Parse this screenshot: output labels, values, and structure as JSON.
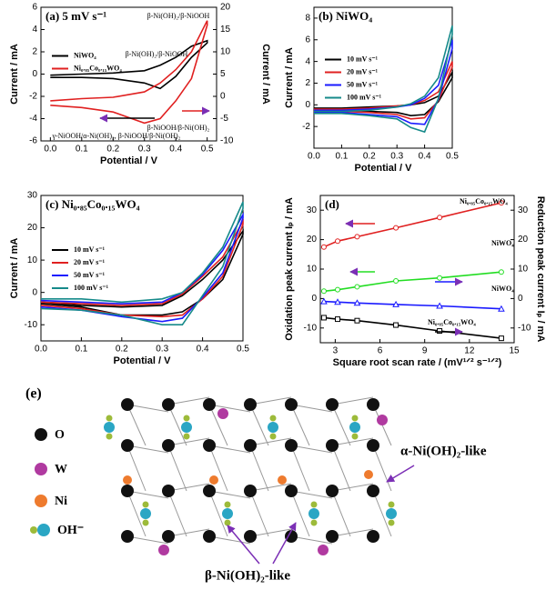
{
  "chart_data": [
    {
      "type": "line",
      "title": "(a) 5 mV s⁻¹",
      "xlabel": "Potential / V",
      "ylabel": "Current / mA",
      "y2label": "Current / mA",
      "xlim": [
        -0.03,
        0.53
      ],
      "xticks": [
        {
          "value": 0,
          "label": "0.0"
        },
        0.1,
        0.2,
        0.3,
        0.4,
        0.5
      ],
      "ylim": [
        -6,
        6
      ],
      "yticks": [
        -6,
        -4,
        -2,
        0,
        2,
        4,
        6
      ],
      "y2lim": [
        -10,
        20
      ],
      "y2ticks": [
        -10,
        -5,
        0,
        5,
        10,
        15,
        20
      ],
      "legend": "center left",
      "x": [
        0,
        0.1,
        0.2,
        0.3,
        0.35,
        0.4,
        0.45,
        0.5,
        0.5,
        0.45,
        0.4,
        0.35,
        0.3,
        0.2,
        0.1,
        0
      ],
      "series": [
        {
          "name": "NiWO₄",
          "color": "#000000",
          "values": [
            -0.1,
            0,
            0.1,
            0.3,
            0.8,
            1.5,
            2.5,
            3,
            2.8,
            1.5,
            -0.2,
            -1.3,
            -0.8,
            -0.4,
            -0.3,
            -0.3
          ]
        },
        {
          "name": "Ni₀.₈₅Co₀.₁₅WO₄",
          "color": "#e02020",
          "axis": "y2",
          "values": [
            -1,
            -0.5,
            -0.2,
            1,
            3,
            6,
            10,
            17,
            16,
            4,
            -1,
            -5,
            -6,
            -3.5,
            -2.5,
            -2
          ]
        }
      ],
      "annotations": [
        "β-Ni(OH)₂/β-NiOOH",
        "β-Ni(OH)₂/β-NiOOH",
        "β-NiOOH/β-Ni(OH)₂",
        "γ-NiOOH/α-Ni(OH)₂, β-NiOOH/β-Ni(OH)₂"
      ]
    },
    {
      "type": "line",
      "title": "(b) NiWO₄",
      "xlabel": "Potential / V",
      "ylabel": "Current / mA",
      "xlim": [
        0,
        0.5
      ],
      "xticks": [
        {
          "value": 0,
          "label": "0.0"
        },
        0.1,
        0.2,
        0.3,
        0.4,
        0.5
      ],
      "ylim": [
        -4,
        9
      ],
      "yticks": [
        -2,
        0,
        2,
        4,
        6,
        8
      ],
      "legend": "center left",
      "x": [
        0,
        0.1,
        0.2,
        0.3,
        0.35,
        0.4,
        0.45,
        0.5,
        0.5,
        0.45,
        0.4,
        0.35,
        0.3,
        0.2,
        0.1,
        0
      ],
      "series": [
        {
          "name": "10 mV s⁻¹",
          "color": "#000000",
          "values": [
            -0.3,
            -0.3,
            -0.2,
            -0.1,
            0,
            0.2,
            0.8,
            3,
            2.5,
            0.3,
            -0.9,
            -1,
            -0.7,
            -0.6,
            -0.5,
            -0.5
          ]
        },
        {
          "name": "20 mV s⁻¹",
          "color": "#e02020",
          "values": [
            -0.4,
            -0.4,
            -0.3,
            -0.1,
            0,
            0.4,
            1.2,
            4,
            3.5,
            0.4,
            -1.2,
            -1.3,
            -0.9,
            -0.7,
            -0.6,
            -0.6
          ]
        },
        {
          "name": "50 mV s⁻¹",
          "color": "#1a1aff",
          "values": [
            -0.5,
            -0.5,
            -0.4,
            -0.2,
            0,
            0.6,
            1.8,
            6,
            5.2,
            0.5,
            -1.8,
            -1.7,
            -1.1,
            -0.9,
            -0.7,
            -0.7
          ]
        },
        {
          "name": "100 mV s⁻¹",
          "color": "#168a8a",
          "values": [
            -0.6,
            -0.6,
            -0.5,
            -0.2,
            0.1,
            0.8,
            2.5,
            7.3,
            6.5,
            0.6,
            -2.5,
            -2.1,
            -1.3,
            -1,
            -0.8,
            -0.8
          ]
        }
      ]
    },
    {
      "type": "line",
      "title": "(c) Ni₀.₈₅Co₀.₁₅WO₄",
      "xlabel": "Potential / V",
      "ylabel": "Current / mA",
      "xlim": [
        0,
        0.5
      ],
      "xticks": [
        {
          "value": 0,
          "label": "0.0"
        },
        0.1,
        0.2,
        0.3,
        0.4,
        0.5
      ],
      "ylim": [
        -15,
        30
      ],
      "yticks": [
        -10,
        0,
        10,
        20,
        30
      ],
      "legend": "center left",
      "x": [
        0,
        0.1,
        0.2,
        0.3,
        0.35,
        0.4,
        0.45,
        0.5,
        0.5,
        0.45,
        0.4,
        0.35,
        0.3,
        0.2,
        0.1,
        0
      ],
      "series": [
        {
          "name": "10 mV s⁻¹",
          "color": "#000000",
          "values": [
            -3,
            -4,
            -4.5,
            -4,
            -1,
            4,
            10,
            19,
            18,
            4,
            -2,
            -6,
            -7,
            -7,
            -4.5,
            -3.5
          ]
        },
        {
          "name": "20 mV s⁻¹",
          "color": "#e02020",
          "values": [
            -3,
            -3.5,
            -4,
            -3.5,
            -0.5,
            5,
            11,
            22,
            21,
            5,
            -2,
            -7,
            -7.5,
            -7,
            -5,
            -4
          ]
        },
        {
          "name": "50 mV s⁻¹",
          "color": "#1a1aff",
          "values": [
            -2.5,
            -3,
            -3.5,
            -3,
            0,
            5.5,
            13,
            24,
            23,
            6,
            -1.5,
            -8,
            -9,
            -7.5,
            -5.5,
            -4.5
          ]
        },
        {
          "name": "100 mV s⁻¹",
          "color": "#168a8a",
          "values": [
            -2,
            -2,
            -3,
            -2,
            0,
            6,
            14,
            28,
            26,
            8,
            -1,
            -10,
            -10,
            -7,
            -5.5,
            -5
          ]
        }
      ]
    },
    {
      "type": "line",
      "title": "(d)",
      "xlabel": "Square root scan rate / (mV¹ᐟ² s⁻¹ᐟ²)",
      "ylabel": "Oxidation peak current Iₚ / mA",
      "y2label": "Reduction peak current Iₚ / mA",
      "xlim": [
        2,
        15
      ],
      "xticks": [
        3,
        6,
        9,
        12,
        15
      ],
      "ylim": [
        -15,
        35
      ],
      "yticks": [
        -10,
        0,
        10,
        20,
        30
      ],
      "y2lim": [
        -15,
        35
      ],
      "y2ticks": [
        -10,
        0,
        10,
        20,
        30
      ],
      "x": [
        2.24,
        3.16,
        4.47,
        7.07,
        10,
        14.14
      ],
      "series": [
        {
          "name": "Ni₀.₈₅Co₀.₁₅WO₄",
          "color": "#e02020",
          "marker": "circle",
          "values": [
            17.5,
            19.5,
            21,
            24,
            27.5,
            32.5
          ]
        },
        {
          "name": "NiWO₄",
          "color": "#22dd22",
          "marker": "circle",
          "values": [
            2.5,
            3,
            4,
            6,
            7,
            9
          ]
        },
        {
          "name": "NiWO₄",
          "color": "#1a1aff",
          "marker": "triangle",
          "axis": "y2",
          "values": [
            -1,
            -1.2,
            -1.5,
            -2,
            -2.5,
            -3.5
          ]
        },
        {
          "name": "Ni₀.₈₅Co₀.₁₅WO₄",
          "color": "#000000",
          "marker": "square",
          "axis": "y2",
          "values": [
            -6.5,
            -7,
            -7.5,
            -9,
            -11,
            -13.5
          ]
        }
      ]
    }
  ],
  "diagram": {
    "label": "(e)",
    "legend": [
      "O",
      "W",
      "Ni",
      "OH⁻"
    ],
    "annotations": [
      "α-Ni(OH)₂-like",
      "β-Ni(OH)₂-like"
    ]
  }
}
